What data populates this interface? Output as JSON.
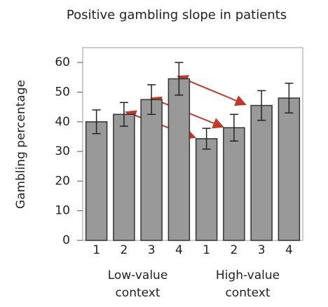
{
  "chart_data": {
    "type": "bar",
    "title": "Positive gambling slope in patients",
    "ylabel": "Gambling percentage",
    "categories": [
      "1",
      "2",
      "3",
      "4",
      "1",
      "2",
      "3",
      "4"
    ],
    "group_labels": [
      [
        "Low-value",
        "context"
      ],
      [
        "High-value",
        "context"
      ]
    ],
    "series": [
      {
        "values": [
          40,
          42.5,
          47.5,
          54.5,
          34.3,
          38,
          45.5,
          48
        ],
        "errors": [
          4,
          4,
          5,
          5.5,
          3.5,
          4.5,
          5,
          5
        ],
        "color": "#999999"
      }
    ],
    "ylim": [
      0,
      65
    ],
    "yticks": [
      0,
      10,
      20,
      30,
      40,
      50,
      60
    ]
  }
}
